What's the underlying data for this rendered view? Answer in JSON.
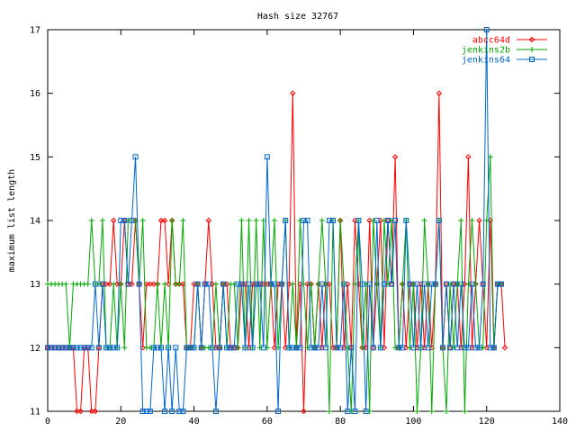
{
  "chart_data": {
    "type": "line",
    "title": "Hash size 32767",
    "xlabel": "",
    "ylabel": "maximum list length",
    "xlim": [
      0,
      140
    ],
    "ylim": [
      11,
      17
    ],
    "xticks": [
      0,
      20,
      40,
      60,
      80,
      100,
      120,
      140
    ],
    "yticks": [
      11,
      12,
      13,
      14,
      15,
      16,
      17
    ],
    "grid": false,
    "legend_position": "top-right",
    "series": [
      {
        "name": "abcc64d",
        "color": "#ff0000",
        "marker": "diamond",
        "values": [
          12,
          12,
          12,
          12,
          12,
          12,
          12,
          12,
          11,
          11,
          12,
          12,
          11,
          11,
          12,
          13,
          13,
          13,
          14,
          13,
          13,
          14,
          13,
          13,
          14,
          13,
          12,
          13,
          13,
          13,
          13,
          14,
          14,
          13,
          14,
          13,
          13,
          13,
          12,
          12,
          13,
          13,
          12,
          13,
          14,
          13,
          12,
          12,
          13,
          13,
          12,
          12,
          12,
          13,
          13,
          12,
          13,
          13,
          13,
          13,
          13,
          13,
          12,
          13,
          13,
          12,
          13,
          16,
          12,
          13,
          11,
          13,
          13,
          12,
          13,
          12,
          13,
          13,
          12,
          12,
          14,
          12,
          13,
          12,
          14,
          13,
          12,
          12,
          14,
          12,
          13,
          14,
          12,
          14,
          13,
          15,
          12,
          13,
          12,
          13,
          13,
          12,
          13,
          12,
          13,
          12,
          13,
          16,
          12,
          13,
          12,
          13,
          13,
          12,
          13,
          15,
          12,
          13,
          14,
          13,
          12,
          14,
          12,
          13,
          13,
          12
        ]
      },
      {
        "name": "jenkins2b",
        "color": "#00aa00",
        "marker": "plus",
        "values": [
          13,
          13,
          13,
          13,
          13,
          13,
          12,
          13,
          13,
          13,
          13,
          13,
          14,
          13,
          13,
          14,
          12,
          12,
          13,
          12,
          13,
          12,
          14,
          14,
          14,
          13,
          14,
          12,
          12,
          12,
          13,
          12,
          13,
          12,
          14,
          13,
          13,
          14,
          12,
          12,
          12,
          13,
          12,
          12,
          12,
          12,
          13,
          12,
          13,
          12,
          13,
          13,
          12,
          14,
          12,
          14,
          12,
          14,
          12,
          14,
          12,
          13,
          14,
          12,
          13,
          14,
          12,
          13,
          12,
          14,
          13,
          12,
          13,
          12,
          13,
          14,
          13,
          11,
          14,
          12,
          14,
          13,
          12,
          11,
          13,
          14,
          12,
          13,
          11,
          14,
          13,
          12,
          14,
          13,
          14,
          12,
          12,
          13,
          14,
          12,
          13,
          11,
          12,
          14,
          13,
          11,
          13,
          14,
          12,
          11,
          13,
          12,
          13,
          14,
          11,
          13,
          14,
          13,
          12,
          12,
          14,
          15,
          12,
          13,
          13
        ]
      },
      {
        "name": "jenkins64",
        "color": "#0066cc",
        "marker": "square",
        "values": [
          12,
          12,
          12,
          12,
          12,
          12,
          12,
          12,
          12,
          12,
          12,
          12,
          12,
          13,
          12,
          13,
          12,
          12,
          12,
          12,
          14,
          14,
          13,
          14,
          15,
          13,
          11,
          11,
          11,
          12,
          12,
          12,
          11,
          12,
          11,
          12,
          11,
          11,
          12,
          12,
          12,
          13,
          12,
          13,
          13,
          12,
          11,
          12,
          13,
          12,
          12,
          12,
          13,
          13,
          12,
          13,
          12,
          13,
          13,
          12,
          15,
          13,
          13,
          11,
          13,
          14,
          12,
          12,
          12,
          12,
          14,
          14,
          12,
          12,
          12,
          13,
          12,
          14,
          14,
          12,
          12,
          13,
          11,
          12,
          11,
          14,
          13,
          11,
          13,
          12,
          14,
          12,
          13,
          14,
          13,
          14,
          12,
          12,
          14,
          13,
          12,
          13,
          12,
          13,
          12,
          13,
          13,
          14,
          12,
          13,
          12,
          13,
          12,
          13,
          12,
          12,
          13,
          12,
          12,
          13,
          17,
          12,
          12,
          13,
          13
        ]
      }
    ]
  }
}
